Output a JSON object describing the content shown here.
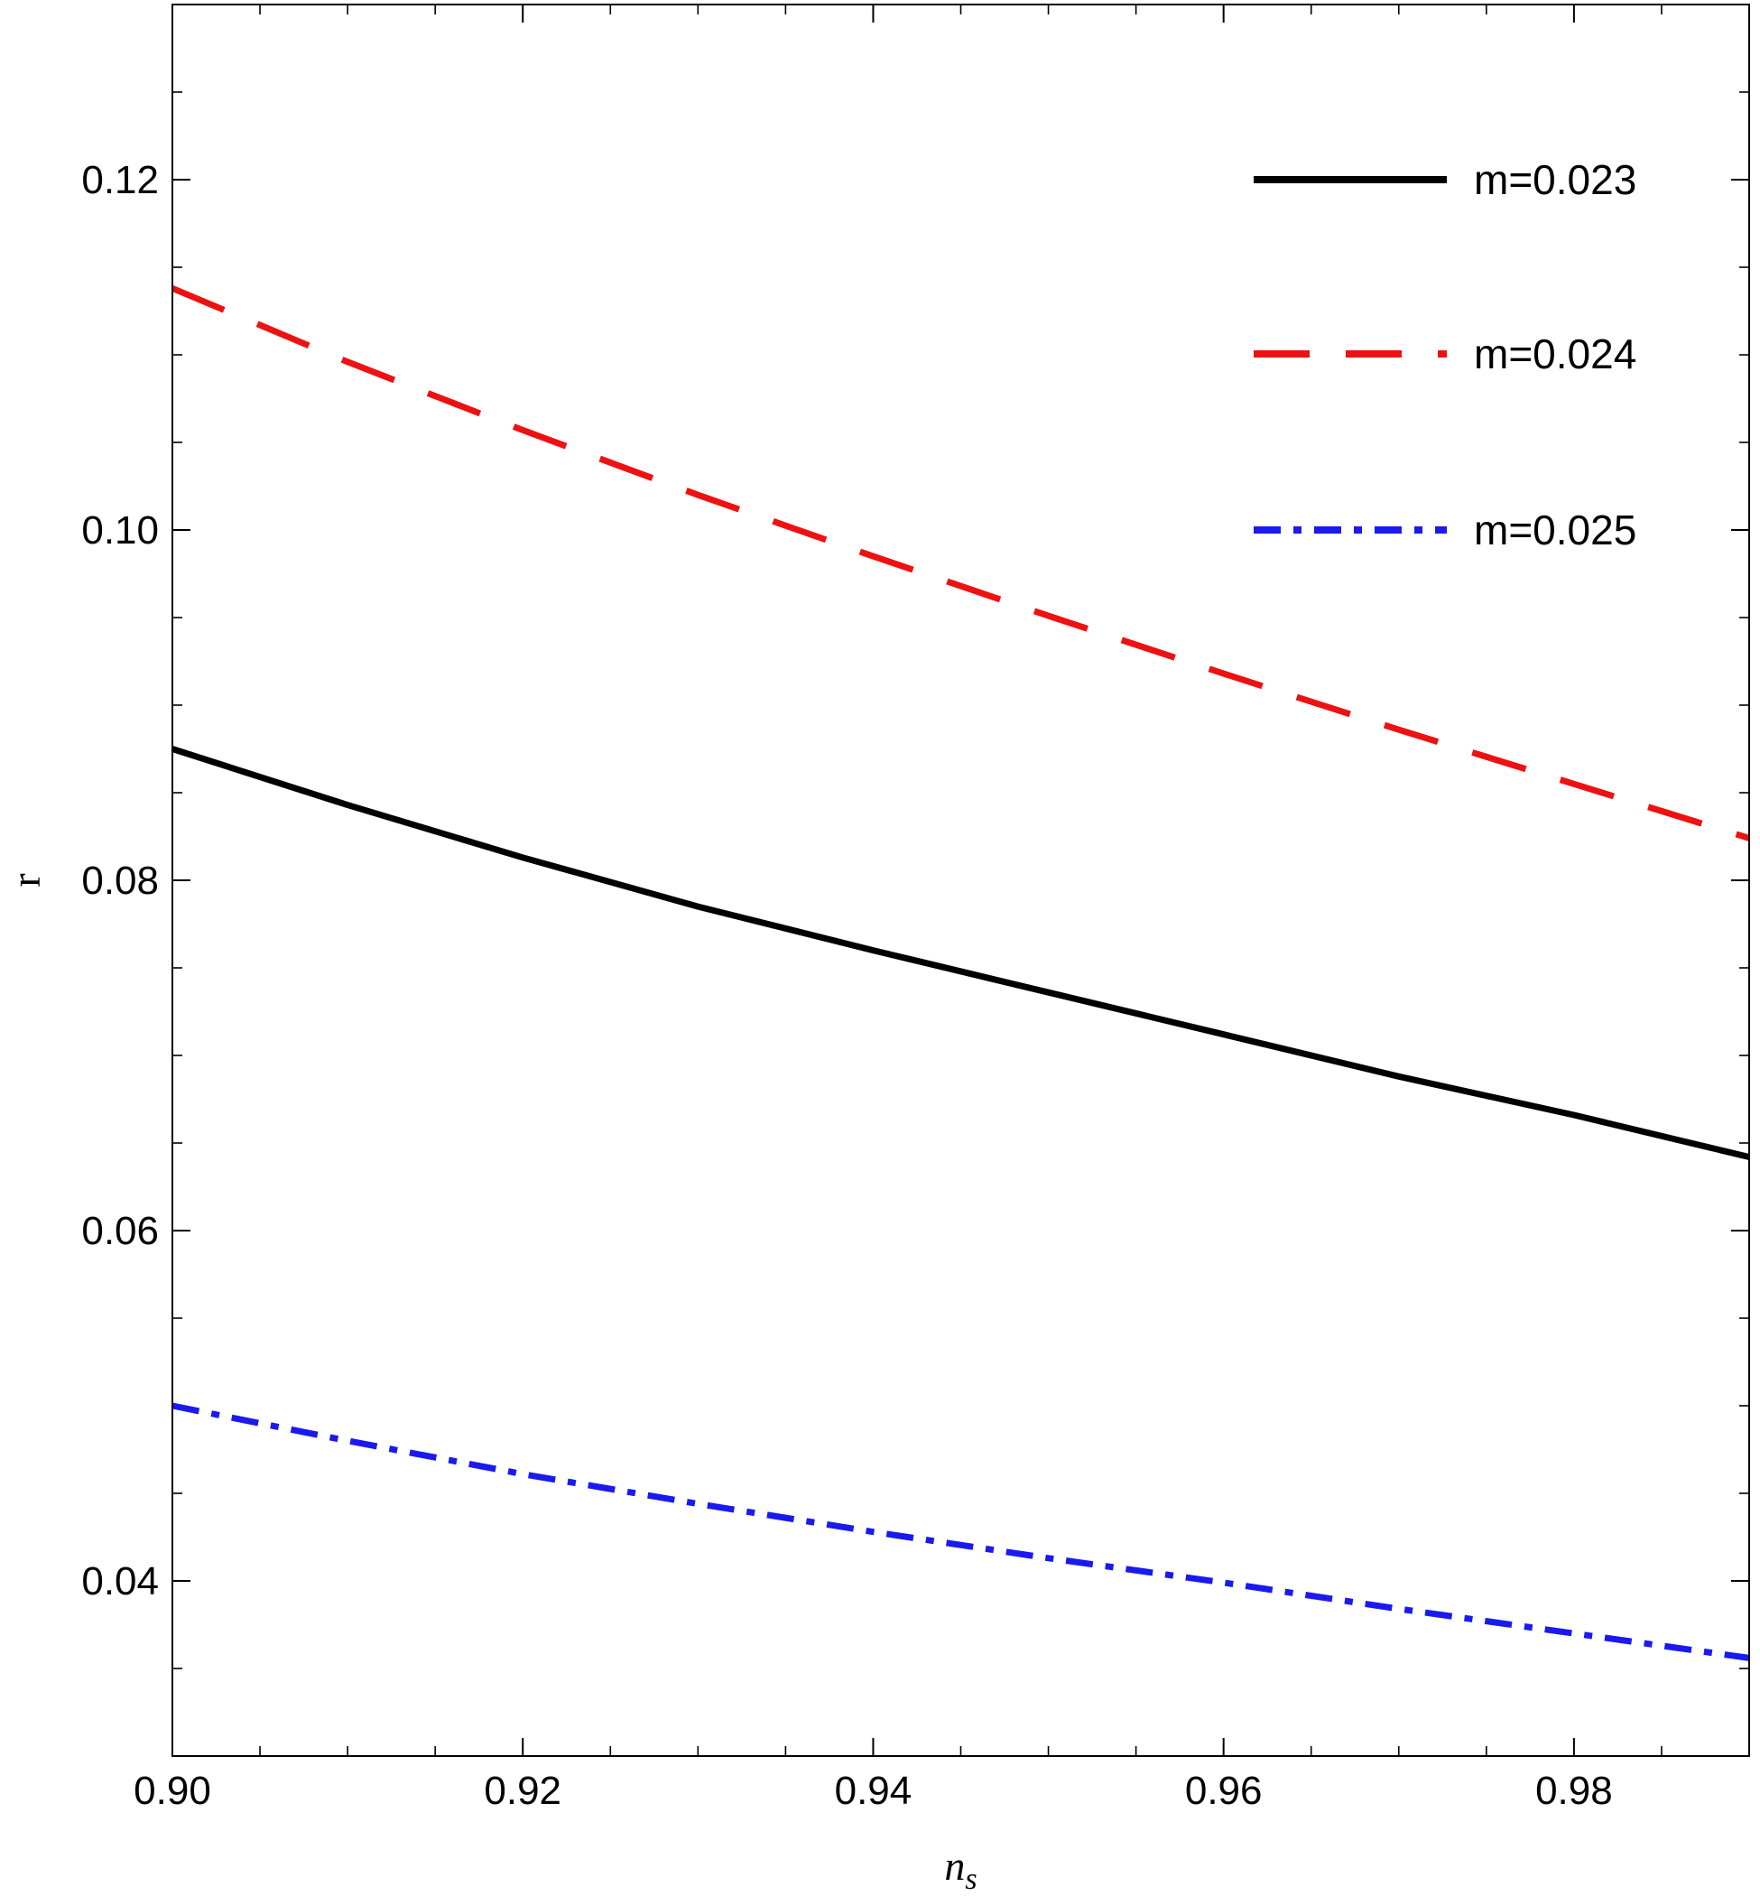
{
  "chart_data": {
    "type": "line",
    "xlabel": "n",
    "xlabel_sub": "s",
    "ylabel": "r",
    "xlim": [
      0.9,
      0.99
    ],
    "ylim": [
      0.03,
      0.13
    ],
    "x_ticks": [
      0.9,
      0.92,
      0.94,
      0.96,
      0.98
    ],
    "x_tick_labels": [
      "0.90",
      "0.92",
      "0.94",
      "0.96",
      "0.98"
    ],
    "y_ticks": [
      0.04,
      0.06,
      0.08,
      0.1,
      0.12
    ],
    "y_tick_labels": [
      "0.04",
      "0.06",
      "0.08",
      "0.10",
      "0.12"
    ],
    "x_minor_step": 0.005,
    "y_minor_step": 0.005,
    "grid": false,
    "legend_position": "top-right",
    "series": [
      {
        "name": "m=0.023",
        "color": "#000000",
        "style": "solid",
        "x": [
          0.9,
          0.91,
          0.92,
          0.93,
          0.94,
          0.95,
          0.96,
          0.97,
          0.98,
          0.99
        ],
        "y": [
          0.0875,
          0.0843,
          0.0813,
          0.0785,
          0.076,
          0.0736,
          0.0712,
          0.0688,
          0.0666,
          0.0642
        ]
      },
      {
        "name": "m=0.024",
        "color": "#ee1111",
        "style": "dashed",
        "x": [
          0.9,
          0.91,
          0.92,
          0.93,
          0.94,
          0.95,
          0.96,
          0.97,
          0.98,
          0.99
        ],
        "y": [
          0.1138,
          0.1096,
          0.1057,
          0.102,
          0.0985,
          0.0951,
          0.0918,
          0.0886,
          0.0855,
          0.0824
        ]
      },
      {
        "name": "m=0.025",
        "color": "#1a1aee",
        "style": "dashdot",
        "x": [
          0.9,
          0.91,
          0.92,
          0.93,
          0.94,
          0.95,
          0.96,
          0.97,
          0.98,
          0.99
        ],
        "y": [
          0.05,
          0.048,
          0.0461,
          0.0444,
          0.0428,
          0.0413,
          0.0399,
          0.0384,
          0.037,
          0.0356
        ]
      }
    ]
  }
}
